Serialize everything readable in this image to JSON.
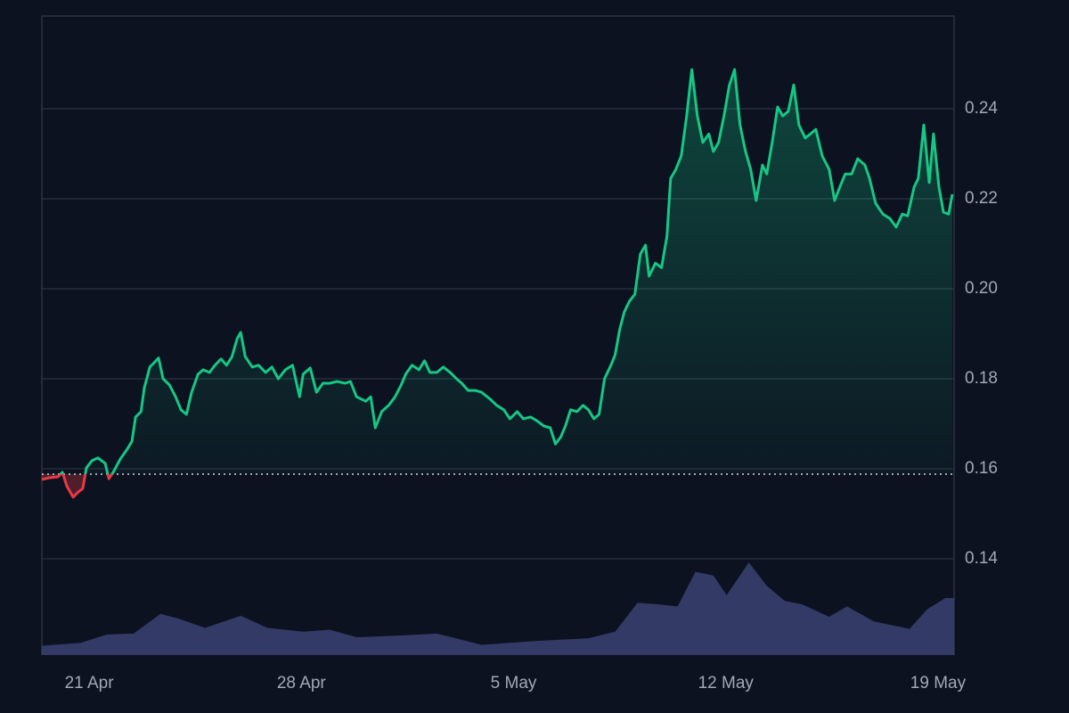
{
  "chart_data": {
    "type": "line",
    "xlim": [
      -1.56,
      28.53
    ],
    "xticks": [
      {
        "value": 0,
        "label": "21 Apr"
      },
      {
        "value": 7,
        "label": "28 Apr"
      },
      {
        "value": 14,
        "label": "5 May"
      },
      {
        "value": 21,
        "label": "12 May"
      },
      {
        "value": 28,
        "label": "19 May"
      }
    ],
    "ylim": [
      0.1186,
      0.2606
    ],
    "yticks": [
      0.14,
      0.16,
      0.18,
      {
        "value": 0.2,
        "label": "0.20"
      },
      0.22,
      0.24
    ],
    "grid": true,
    "baseline": 0.1588,
    "x": [
      -1.56,
      -1.32,
      -1.03,
      -0.88,
      -0.74,
      -0.53,
      -0.35,
      -0.21,
      -0.09,
      0.09,
      0.29,
      0.53,
      0.65,
      0.79,
      1.03,
      1.24,
      1.41,
      1.53,
      1.71,
      1.82,
      2.0,
      2.12,
      2.29,
      2.44,
      2.65,
      2.85,
      3.03,
      3.21,
      3.38,
      3.59,
      3.76,
      3.97,
      4.15,
      4.35,
      4.53,
      4.71,
      4.88,
      5.0,
      5.15,
      5.38,
      5.59,
      5.82,
      6.03,
      6.24,
      6.47,
      6.71,
      6.94,
      7.06,
      7.29,
      7.5,
      7.71,
      7.94,
      8.18,
      8.44,
      8.62,
      8.82,
      9.12,
      9.29,
      9.44,
      9.65,
      9.88,
      10.09,
      10.29,
      10.44,
      10.65,
      10.88,
      11.06,
      11.24,
      11.47,
      11.68,
      11.91,
      12.12,
      12.29,
      12.5,
      12.74,
      12.94,
      13.24,
      13.44,
      13.68,
      13.88,
      14.12,
      14.32,
      14.56,
      14.76,
      15.0,
      15.21,
      15.38,
      15.56,
      15.71,
      15.88,
      16.09,
      16.29,
      16.47,
      16.65,
      16.82,
      17.0,
      17.21,
      17.35,
      17.5,
      17.65,
      17.82,
      18.0,
      18.18,
      18.35,
      18.47,
      18.68,
      18.88,
      19.06,
      19.18,
      19.35,
      19.53,
      19.71,
      19.88,
      20.06,
      20.24,
      20.44,
      20.59,
      20.76,
      20.94,
      21.12,
      21.29,
      21.47,
      21.65,
      21.82,
      22.0,
      22.21,
      22.35,
      22.53,
      22.71,
      22.88,
      23.06,
      23.24,
      23.41,
      23.62,
      23.79,
      23.97,
      24.18,
      24.41,
      24.59,
      24.76,
      24.94,
      25.15,
      25.35,
      25.59,
      25.74,
      25.94,
      26.18,
      26.41,
      26.62,
      26.82,
      27.0,
      27.21,
      27.35,
      27.53,
      27.71,
      27.85,
      28.03,
      28.18,
      28.35,
      28.47
    ],
    "series": [
      {
        "color": "#16c784",
        "color_below": "#ea3943",
        "values": [
          0.1576,
          0.158,
          0.1582,
          0.1592,
          0.1562,
          0.1537,
          0.1549,
          0.1556,
          0.1602,
          0.1618,
          0.1624,
          0.1612,
          0.1578,
          0.1592,
          0.1622,
          0.1642,
          0.1661,
          0.1715,
          0.1727,
          0.178,
          0.1826,
          0.1834,
          0.1846,
          0.18,
          0.1786,
          0.176,
          0.1731,
          0.1721,
          0.177,
          0.181,
          0.182,
          0.1814,
          0.183,
          0.1844,
          0.183,
          0.1849,
          0.1889,
          0.1903,
          0.1849,
          0.1826,
          0.183,
          0.1814,
          0.1826,
          0.18,
          0.182,
          0.183,
          0.176,
          0.181,
          0.1824,
          0.177,
          0.179,
          0.179,
          0.1794,
          0.179,
          0.1794,
          0.176,
          0.175,
          0.176,
          0.1691,
          0.1727,
          0.1741,
          0.176,
          0.1786,
          0.181,
          0.183,
          0.182,
          0.184,
          0.1814,
          0.1814,
          0.1826,
          0.1814,
          0.18,
          0.179,
          0.1774,
          0.1774,
          0.177,
          0.1754,
          0.1741,
          0.1731,
          0.1711,
          0.1727,
          0.1711,
          0.1715,
          0.1707,
          0.1695,
          0.1691,
          0.1655,
          0.1671,
          0.1695,
          0.1731,
          0.1727,
          0.1741,
          0.1731,
          0.1711,
          0.1721,
          0.18,
          0.183,
          0.1853,
          0.1909,
          0.1948,
          0.1972,
          0.1988,
          0.2077,
          0.2097,
          0.2028,
          0.2057,
          0.2047,
          0.2117,
          0.2245,
          0.2265,
          0.2295,
          0.2384,
          0.2487,
          0.2384,
          0.2325,
          0.2344,
          0.2305,
          0.2325,
          0.2384,
          0.2453,
          0.2487,
          0.2364,
          0.2305,
          0.2265,
          0.2196,
          0.2275,
          0.2255,
          0.2325,
          0.2404,
          0.2384,
          0.2394,
          0.2453,
          0.2364,
          0.2335,
          0.2344,
          0.2354,
          0.2295,
          0.2265,
          0.2196,
          0.2226,
          0.2255,
          0.2255,
          0.2289,
          0.2275,
          0.2245,
          0.219,
          0.2166,
          0.2156,
          0.2137,
          0.2166,
          0.2162,
          0.2226,
          0.2245,
          0.2364,
          0.2236,
          0.2344,
          0.2226,
          0.217,
          0.2166,
          0.221
        ]
      }
    ],
    "volume": {
      "color": "#3a4272",
      "ylim": [
        0,
        100
      ],
      "x": [
        -1.56,
        -0.29,
        0.59,
        1.47,
        2.35,
        2.94,
        3.82,
        5.0,
        5.88,
        7.06,
        7.94,
        8.82,
        10.29,
        11.47,
        12.94,
        14.71,
        16.47,
        17.35,
        18.09,
        18.82,
        19.41,
        20.0,
        20.59,
        21.03,
        21.76,
        22.35,
        22.94,
        23.53,
        24.41,
        25.0,
        25.88,
        27.06,
        27.65,
        28.24,
        28.53
      ],
      "values": [
        10,
        13,
        22,
        23,
        44,
        39,
        29,
        42,
        29,
        25,
        27,
        19,
        21,
        23,
        11,
        15,
        18,
        25,
        56,
        54,
        52,
        89,
        85,
        64,
        99,
        74,
        58,
        54,
        41,
        52,
        36,
        28,
        49,
        61,
        61
      ]
    }
  }
}
